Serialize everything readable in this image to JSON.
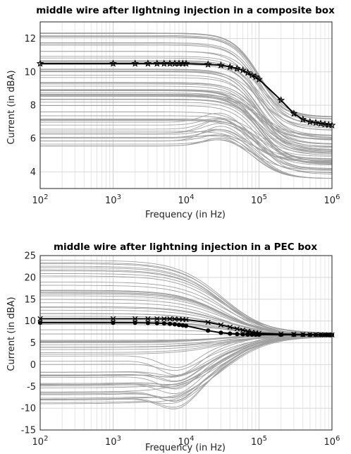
{
  "chart_data": [
    {
      "type": "line",
      "title": "middle wire after lightning injection in a composite box",
      "xlabel": "Frequency (in Hz)",
      "ylabel": "Current (in dBA)",
      "xscale": "log",
      "xlim": [
        100,
        1000000
      ],
      "ylim": [
        3,
        13
      ],
      "xticks": [
        100,
        1000,
        10000,
        100000,
        1000000
      ],
      "xtick_labels": [
        "10²",
        "10³",
        "10⁴",
        "10⁵",
        "10⁶"
      ],
      "yticks": [
        4,
        6,
        8,
        10,
        12
      ],
      "grid": true,
      "ensemble": {
        "color": "#a0a0a0",
        "low_freq_min": 5.5,
        "low_freq_max": 12.4,
        "high_freq_min": 3.6,
        "high_freq_max": 7.3
      },
      "series": [
        {
          "marker": "pentagram",
          "color": "#000000",
          "x": [
            100,
            1000,
            2000,
            3000,
            4000,
            5000,
            6000,
            7000,
            8000,
            9000,
            10000,
            20000,
            30000,
            40000,
            50000,
            60000,
            70000,
            80000,
            90000,
            100000,
            200000,
            300000,
            400000,
            500000,
            600000,
            700000,
            800000,
            900000,
            1000000
          ],
          "y": [
            10.5,
            10.5,
            10.5,
            10.5,
            10.5,
            10.5,
            10.5,
            10.5,
            10.5,
            10.5,
            10.5,
            10.45,
            10.4,
            10.3,
            10.2,
            10.1,
            9.95,
            9.8,
            9.7,
            9.55,
            8.3,
            7.5,
            7.15,
            7.0,
            6.95,
            6.9,
            6.85,
            6.82,
            6.8
          ]
        }
      ]
    },
    {
      "type": "line",
      "title": "middle wire after lightning injection in a PEC box",
      "xlabel": "Frequency (in Hz)",
      "ylabel": "Current (in dBA)",
      "xscale": "log",
      "xlim": [
        100,
        1000000
      ],
      "ylim": [
        -15,
        25
      ],
      "xticks": [
        100,
        1000,
        10000,
        100000,
        1000000
      ],
      "xtick_labels": [
        "10²",
        "10³",
        "10⁴",
        "10⁵",
        "10⁶"
      ],
      "yticks": [
        -15,
        -10,
        -5,
        0,
        5,
        10,
        15,
        20,
        25
      ],
      "grid": true,
      "ensemble": {
        "color": "#a0a0a0",
        "low_freq_min": -9,
        "low_freq_max": 24,
        "converge_value": 6.8
      },
      "series": [
        {
          "marker": "x",
          "color": "#000000",
          "x": [
            100,
            1000,
            2000,
            3000,
            4000,
            5000,
            6000,
            7000,
            8000,
            9000,
            10000,
            20000,
            30000,
            40000,
            50000,
            60000,
            70000,
            80000,
            90000,
            100000,
            200000,
            300000,
            400000,
            500000,
            600000,
            700000,
            800000,
            900000,
            1000000
          ],
          "y": [
            10.5,
            10.5,
            10.5,
            10.5,
            10.5,
            10.5,
            10.5,
            10.45,
            10.4,
            10.35,
            10.3,
            9.7,
            9.1,
            8.6,
            8.2,
            7.9,
            7.6,
            7.4,
            7.3,
            7.2,
            7.0,
            6.95,
            6.9,
            6.88,
            6.86,
            6.85,
            6.84,
            6.82,
            6.8
          ]
        },
        {
          "marker": "dot",
          "color": "#000000",
          "x": [
            100,
            1000,
            2000,
            3000,
            4000,
            5000,
            6000,
            7000,
            8000,
            9000,
            10000,
            20000,
            30000,
            40000,
            50000,
            60000,
            70000,
            80000,
            90000,
            100000,
            200000,
            300000,
            400000,
            500000,
            600000,
            700000,
            800000,
            900000,
            1000000
          ],
          "y": [
            9.6,
            9.6,
            9.6,
            9.55,
            9.5,
            9.45,
            9.35,
            9.25,
            9.1,
            9.0,
            8.9,
            7.8,
            7.3,
            7.1,
            7.0,
            6.95,
            6.9,
            6.9,
            6.88,
            6.87,
            6.85,
            6.84,
            6.83,
            6.82,
            6.81,
            6.8,
            6.8,
            6.8,
            6.8
          ]
        }
      ]
    }
  ]
}
